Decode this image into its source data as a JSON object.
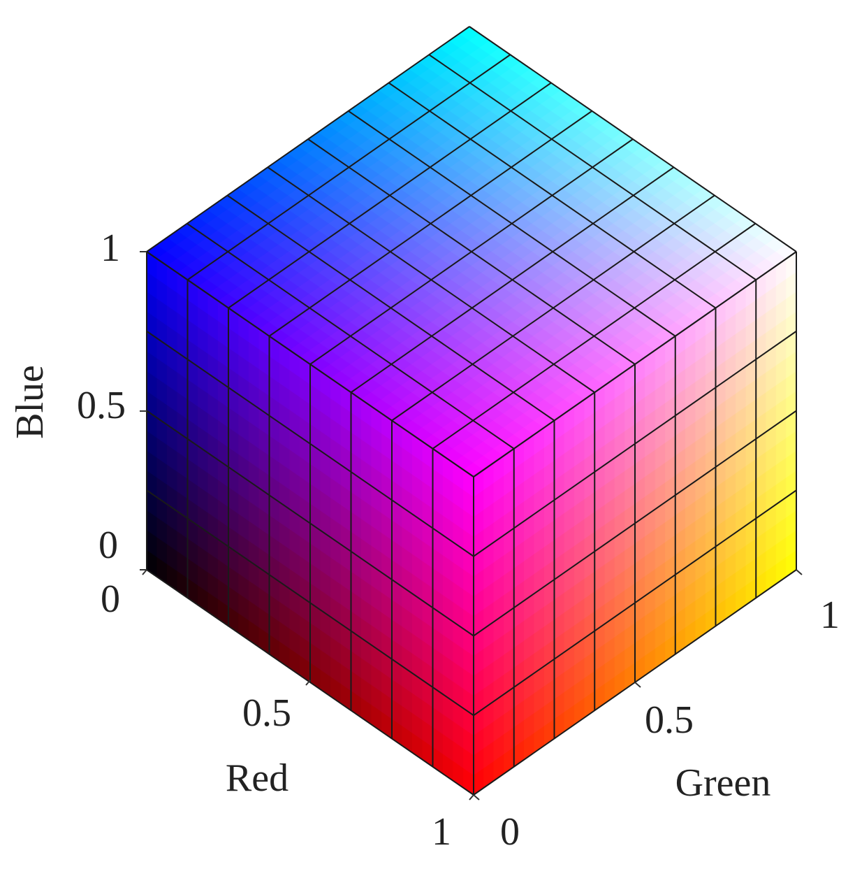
{
  "axes": {
    "blue": {
      "label": "Blue",
      "ticks": [
        "0",
        "0.5",
        "1"
      ]
    },
    "red": {
      "label": "Red",
      "ticks": [
        "0",
        "0.5",
        "1"
      ]
    },
    "green": {
      "label": "Green",
      "ticks": [
        "0",
        "0.5",
        "1"
      ]
    }
  }
}
